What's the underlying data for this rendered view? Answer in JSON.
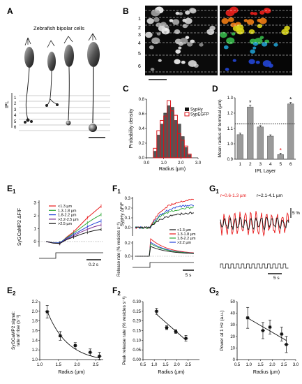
{
  "panels": {
    "A": {
      "letter": "A",
      "title": "Zebrafish bipolar cells",
      "ipl_label": "IPL",
      "layers": [
        "1",
        "2",
        "3",
        "4",
        "5",
        "6"
      ]
    },
    "B": {
      "letter": "B",
      "layers": [
        "1",
        "2",
        "3",
        "4",
        "5",
        "6"
      ]
    },
    "C": {
      "letter": "C"
    },
    "D": {
      "letter": "D"
    },
    "E1": {
      "letter": "E",
      "sub": "1"
    },
    "F1": {
      "letter": "F",
      "sub": "1"
    },
    "G1": {
      "letter": "G",
      "sub": "1",
      "label_red": "r=0.6-1.3 µm",
      "label_black": "r=2.1-4.1 µm",
      "scale_pct": "5 %",
      "scale_time": "5 s"
    },
    "E2": {
      "letter": "E",
      "sub": "2"
    },
    "F2": {
      "letter": "F",
      "sub": "2"
    },
    "G2": {
      "letter": "G",
      "sub": "2"
    }
  },
  "legend_bins": [
    "<1.3 µm",
    "1.3-1.8 µm",
    "1.8-2.2 µm",
    ">2.2-2.5 µm",
    ">2.5 µm"
  ],
  "legend_bins_f": [
    "<1.3 µm",
    "1.3-1.8 µm",
    "1.8-2.2 µm",
    ">2.2 µm"
  ],
  "colors": {
    "red": "#e8191a",
    "green": "#2fa837",
    "blue": "#2442d8",
    "purple": "#7b2b8f",
    "black": "#111111",
    "gray": "#9a9a9a",
    "pink": "#d9141b"
  },
  "chart_data": [
    {
      "id": "C",
      "type": "bar",
      "xlabel": "Radius (µm)",
      "ylabel": "Probability density",
      "xlim": [
        0,
        3.0
      ],
      "ylim": [
        0,
        0.8
      ],
      "xticks": [
        "0.0",
        "1.0",
        "2.0",
        "3.0"
      ],
      "yticks": [
        "0.0",
        "0.2",
        "0.4",
        "0.6",
        "0.8"
      ],
      "legend": "top-right",
      "bin_edges": [
        0.4,
        0.6,
        0.8,
        1.0,
        1.2,
        1.4,
        1.6,
        1.8,
        2.0,
        2.2,
        2.4,
        2.6
      ],
      "series": [
        {
          "name": "SypHy",
          "values": [
            0.09,
            0.31,
            0.46,
            0.61,
            0.71,
            0.69,
            0.51,
            0.46,
            0.29,
            0.14,
            0.04
          ]
        },
        {
          "name": "SypEGFP",
          "values": [
            0.13,
            0.37,
            0.51,
            0.57,
            0.78,
            0.64,
            0.58,
            0.33,
            0.24,
            0.16,
            0.05
          ]
        }
      ]
    },
    {
      "id": "D",
      "type": "bar",
      "xlabel": "IPL Layer",
      "ylabel": "Mean radius of terminal (µm)",
      "ylim": [
        0.9,
        1.3
      ],
      "yticks": [
        "0.9",
        "1.0",
        "1.1",
        "1.2",
        "1.3"
      ],
      "categories": [
        "1",
        "2",
        "3",
        "4",
        "5",
        "6"
      ],
      "values": [
        1.06,
        1.24,
        1.11,
        1.05,
        0.93,
        1.26
      ],
      "errors": [
        0.005,
        0.006,
        0.004,
        0.004,
        0.004,
        0.005
      ],
      "significant": [
        false,
        true,
        false,
        false,
        true,
        true
      ],
      "reference_line": 1.13
    },
    {
      "id": "E1",
      "type": "line",
      "ylabel": "SyGCaMP2 ΔF/F",
      "yticks": [
        "0",
        "1",
        "2",
        "3"
      ],
      "ylim": [
        -0.6,
        3.2
      ],
      "scale_time": "0.2 s",
      "x": [
        0,
        1,
        2,
        3,
        4,
        5,
        6,
        7,
        8
      ],
      "series": [
        {
          "name": "<1.3 µm",
          "color": "red",
          "values": [
            0,
            -0.1,
            -0.15,
            0.35,
            0.75,
            1.3,
            1.85,
            2.3,
            2.75
          ]
        },
        {
          "name": "1.3-1.8 µm",
          "color": "green",
          "values": [
            0,
            -0.1,
            -0.1,
            0.3,
            0.65,
            1.05,
            1.45,
            1.8,
            2.1
          ]
        },
        {
          "name": "1.8-2.2 µm",
          "color": "blue",
          "values": [
            0,
            -0.1,
            -0.1,
            0.25,
            0.55,
            0.85,
            1.15,
            1.4,
            1.6
          ]
        },
        {
          "name": ">2.2-2.5 µm",
          "color": "purple",
          "values": [
            0,
            -0.12,
            -0.15,
            0.2,
            0.45,
            0.72,
            0.95,
            1.15,
            1.3
          ]
        },
        {
          "name": ">2.5 µm",
          "color": "black",
          "values": [
            0,
            -0.12,
            -0.15,
            0.15,
            0.35,
            0.55,
            0.72,
            0.85,
            0.95
          ]
        }
      ]
    },
    {
      "id": "F1",
      "type": "line",
      "ylabel_top": "SypHy ΔF/F",
      "ylabel_bottom": "Release rate (% vesicles s⁻¹)",
      "scale_time": "5 s"
    },
    {
      "id": "G1",
      "type": "line"
    },
    {
      "id": "E2",
      "type": "scatter",
      "xlabel": "Radius (µm)",
      "ylabel": "SyGCaMP2 signal: rate of rise (s⁻¹)",
      "xlim": [
        1.0,
        2.7
      ],
      "ylim": [
        1.0,
        2.2
      ],
      "xticks": [
        "1.0",
        "1.5",
        "2.0",
        "2.5"
      ],
      "yticks": [
        "1.0",
        "1.2",
        "1.4",
        "1.6",
        "1.8",
        "2.0",
        "2.2"
      ],
      "x": [
        1.2,
        1.55,
        1.95,
        2.35,
        2.6
      ],
      "y": [
        1.99,
        1.49,
        1.29,
        1.15,
        1.07
      ],
      "err": [
        0.13,
        0.09,
        0.06,
        0.07,
        0.08
      ]
    },
    {
      "id": "F2",
      "type": "scatter",
      "xlabel": "Radius (µm)",
      "ylabel": "Peak release rate (% vesicles s⁻¹)",
      "xlim": [
        0.5,
        3.0
      ],
      "ylim": [
        0.0,
        0.3
      ],
      "xticks": [
        "0.5",
        "1.0",
        "1.5",
        "2.0",
        "2.5"
      ],
      "yticks": [
        "0.00",
        "0.05",
        "0.10",
        "0.15",
        "0.20",
        "0.25",
        "0.30"
      ],
      "x": [
        1.1,
        1.55,
        1.95,
        2.4
      ],
      "y": [
        0.25,
        0.165,
        0.145,
        0.11
      ],
      "err": [
        0.015,
        0.01,
        0.01,
        0.015
      ]
    },
    {
      "id": "G2",
      "type": "scatter",
      "xlabel": "Radius (µm)",
      "ylabel": "Power at 1 Hz (a.u.)",
      "xlim": [
        0.5,
        3.0
      ],
      "ylim": [
        0,
        50
      ],
      "xticks": [
        "0.5",
        "1.0",
        "1.5",
        "2.0",
        "2.5",
        "3.0"
      ],
      "yticks": [
        "0",
        "10",
        "20",
        "30",
        "40",
        "50"
      ],
      "x": [
        0.95,
        1.6,
        1.9,
        2.4,
        2.6
      ],
      "y": [
        36,
        25,
        28,
        22,
        13
      ],
      "err": [
        9,
        7,
        6,
        6,
        7
      ]
    }
  ]
}
